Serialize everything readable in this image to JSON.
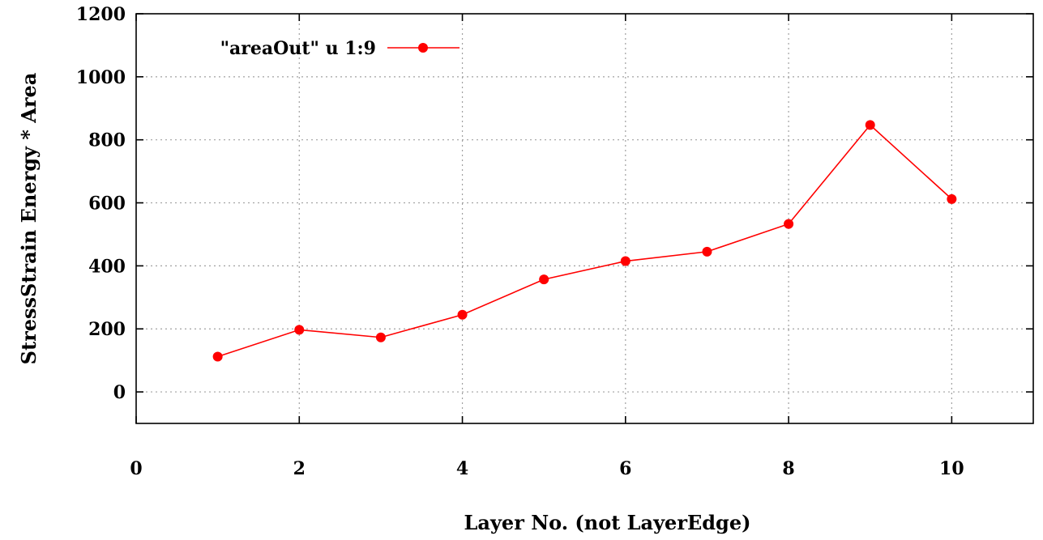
{
  "chart_data": {
    "type": "line",
    "x": [
      1,
      2,
      3,
      4,
      5,
      6,
      7,
      8,
      9,
      10
    ],
    "series": [
      {
        "name": "\"areaOut\"  u 1:9",
        "color": "#ff0000",
        "marker": "circle",
        "values": [
          112,
          197,
          173,
          245,
          357,
          415,
          445,
          533,
          847,
          612
        ]
      }
    ],
    "xlabel": "Layer No. (not LayerEdge)",
    "ylabel": "StressStrain Energy * Area",
    "xlim": [
      0,
      11
    ],
    "ylim": [
      -100,
      1200
    ],
    "xticks": [
      0,
      2,
      4,
      6,
      8,
      10
    ],
    "yticks": [
      0,
      200,
      400,
      600,
      800,
      1000,
      1200
    ],
    "xtick_labels": [
      "0",
      "2",
      "4",
      "6",
      "8",
      "10"
    ],
    "ytick_labels": [
      "0",
      "200",
      "400",
      "600",
      "800",
      "1000",
      "1200"
    ],
    "grid": true,
    "legend_position": "top-left"
  }
}
